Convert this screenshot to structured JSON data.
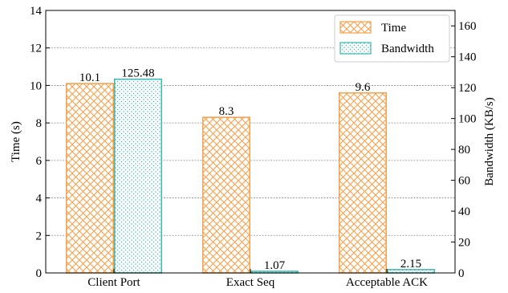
{
  "chart_data": {
    "type": "bar",
    "categories": [
      "Client Port",
      "Exact Seq",
      "Acceptable ACK"
    ],
    "series": [
      {
        "name": "Time",
        "axis": "left",
        "values": [
          10.1,
          8.3,
          9.6
        ],
        "labels": [
          "10.1",
          "8.3",
          "9.6"
        ],
        "color": "#f5a04a",
        "pattern": "crosshatch"
      },
      {
        "name": "Bandwidth",
        "axis": "right",
        "values": [
          125.48,
          1.07,
          2.15
        ],
        "labels": [
          "125.48",
          "1.07",
          "2.15"
        ],
        "color": "#3cb8b0",
        "pattern": "dots"
      }
    ],
    "ylabel_left": "Time (s)",
    "ylabel_right": "Bandwidth (KB/s)",
    "ylim_left": [
      0,
      14
    ],
    "yticks_left": [
      0,
      2,
      4,
      6,
      8,
      10,
      12,
      14
    ],
    "ylim_right": [
      0,
      170
    ],
    "yticks_right": [
      0,
      20,
      40,
      60,
      80,
      100,
      120,
      140,
      160
    ],
    "grid": true,
    "legend_position": "top-right"
  }
}
